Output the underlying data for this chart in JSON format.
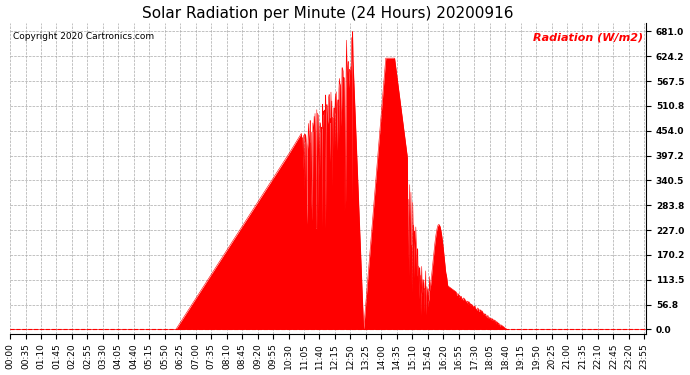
{
  "title": "Solar Radiation per Minute (24 Hours) 20200916",
  "copyright_text": "Copyright 2020 Cartronics.com",
  "ylabel": "Radiation (W/m2)",
  "ylabel_color": "#ff0000",
  "background_color": "#ffffff",
  "fill_color": "#ff0000",
  "line_color": "#ff0000",
  "dashed_line_color": "#ff0000",
  "grid_color": "#aaaaaa",
  "yticks": [
    0.0,
    56.8,
    113.5,
    170.2,
    227.0,
    283.8,
    340.5,
    397.2,
    454.0,
    510.8,
    567.5,
    624.2,
    681.0
  ],
  "ylim": [
    -10,
    700
  ],
  "xtick_interval_minutes": 35,
  "total_minutes": 1440,
  "figsize": [
    6.9,
    3.75
  ],
  "dpi": 100,
  "title_fontsize": 11,
  "axis_fontsize": 6.5,
  "ylabel_fontsize": 8,
  "sunrise_minute": 375,
  "sunset_minute": 1125,
  "peak_minute": 775,
  "peak_value": 681
}
